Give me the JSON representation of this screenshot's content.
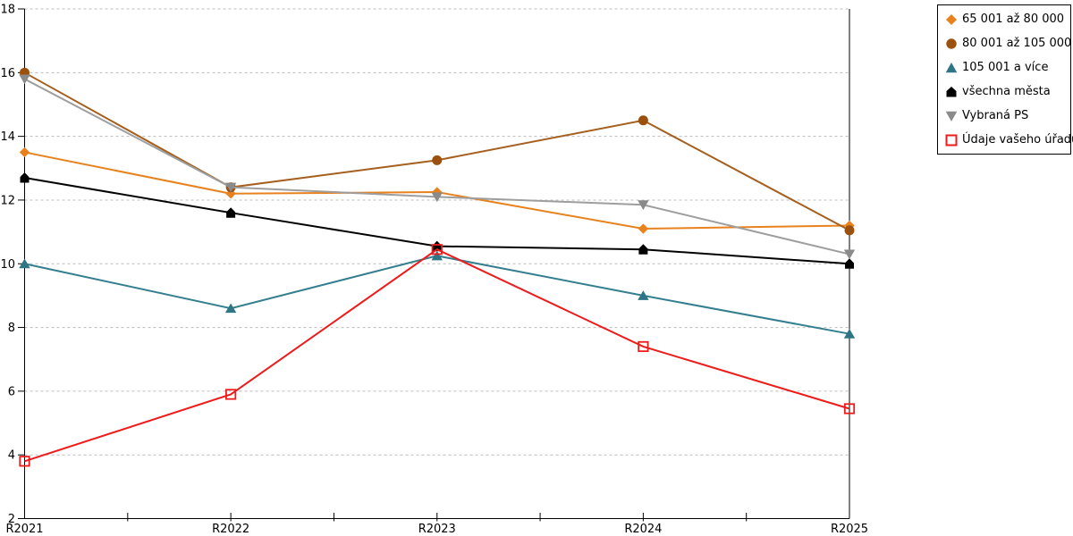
{
  "chart_data": {
    "type": "line",
    "title": "",
    "xlabel": "",
    "ylabel": "",
    "categories": [
      "R2021",
      "R2022",
      "R2023",
      "R2024",
      "R2025"
    ],
    "series": [
      {
        "name": "65 001 až 80 000",
        "marker": "diamond",
        "color": "#E8821E",
        "marker_color": "#E8821E",
        "values": [
          13.5,
          12.2,
          12.25,
          11.1,
          11.2
        ]
      },
      {
        "name": "80 001 až 105 000",
        "marker": "circle",
        "color": "#A5601F",
        "marker_color": "#9C500E",
        "values": [
          16.0,
          12.4,
          13.25,
          14.5,
          11.05
        ]
      },
      {
        "name": "105 001 a více",
        "marker": "triangle-up",
        "color": "#347F8F",
        "marker_color": "#2E7585",
        "values": [
          10.0,
          8.6,
          10.25,
          9.0,
          7.8
        ]
      },
      {
        "name": "všechna města",
        "marker": "home",
        "color": "#000000",
        "marker_color": "#000000",
        "values": [
          12.7,
          11.6,
          10.55,
          10.45,
          10.0
        ]
      },
      {
        "name": "Vybraná PS",
        "marker": "triangle-down",
        "color": "#9E9E9E",
        "marker_color": "#8A8A8A",
        "values": [
          15.8,
          12.4,
          12.1,
          11.85,
          10.3
        ]
      },
      {
        "name": "Údaje vašeho úřadu",
        "marker": "square-open",
        "color": "#EE1B1B",
        "marker_color": "#EE1B1B",
        "values": [
          3.8,
          5.9,
          10.45,
          7.4,
          5.45
        ]
      }
    ],
    "ylim": [
      2,
      18
    ],
    "yticks": [
      2,
      4,
      6,
      8,
      10,
      12,
      14,
      16,
      18
    ],
    "ytick_step": 2,
    "grid": "horizontal-dashed",
    "legend_position": "outside-top-right"
  },
  "colors": {
    "background": "#FFFFFF",
    "axis": "#000000",
    "grid": "#BBBBBB",
    "legend_border": "#000000",
    "text": "#000000"
  }
}
